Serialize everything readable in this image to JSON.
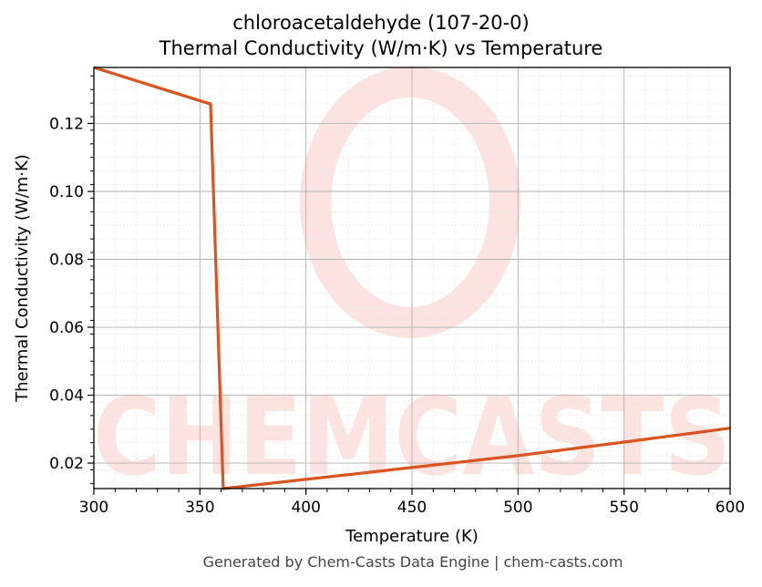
{
  "chart_data": {
    "type": "line",
    "title_line1": "chloroacetaldehyde (107-20-0)",
    "title_line2": "Thermal Conductivity (W/m·K) vs Temperature",
    "xlabel": "Temperature (K)",
    "ylabel": "Thermal Conductivity (W/m·K)",
    "xlim": [
      300,
      600
    ],
    "ylim": [
      0.0125,
      0.1365
    ],
    "xticks": [
      300,
      350,
      400,
      450,
      500,
      550,
      600
    ],
    "yticks": [
      0.02,
      0.04,
      0.06,
      0.08,
      0.1,
      0.12
    ],
    "ytick_labels": [
      "0.02",
      "0.04",
      "0.06",
      "0.08",
      "0.10",
      "0.12"
    ],
    "grid": true,
    "series": [
      {
        "color": "#d9541e",
        "x": [
          300,
          355,
          361,
          400,
          450,
          500,
          550,
          600
        ],
        "y": [
          0.1365,
          0.1257,
          0.0125,
          0.0152,
          0.0187,
          0.0222,
          0.0262,
          0.0303
        ]
      }
    ]
  },
  "watermark": {
    "text": "CHEMCASTS",
    "color": "#fde3df"
  },
  "footer": "Generated by Chem-Casts Data Engine | chem-casts.com"
}
